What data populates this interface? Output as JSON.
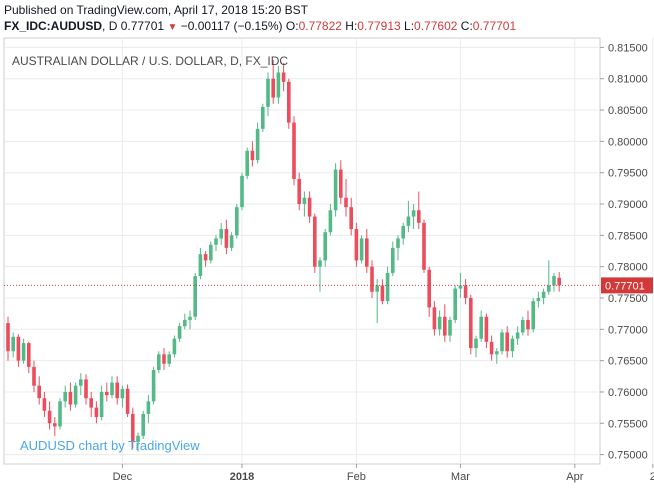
{
  "header": {
    "published": "Published on TradingView.com, April 17, 2018 15:20 BST",
    "symbol": "FX_IDC:AUDUSD",
    "interval": "D",
    "last": "0.77701",
    "change": "−0.00117 (−0.15%)",
    "o_label": "O:",
    "o": "0.77822",
    "h_label": "H:",
    "h": "0.77913",
    "l_label": "L:",
    "l": "0.77602",
    "c_label": "C:",
    "c": "0.77701",
    "down_icon": "down-triangle-icon"
  },
  "chart_data": {
    "type": "candlestick",
    "title": "AUSTRALIAN DOLLAR / U.S. DOLLAR, D, FX_IDC",
    "watermark": "AUDUSD chart by TradingView",
    "ylim": [
      0.7485,
      0.8165
    ],
    "y_ticks": [
      "0.81500",
      "0.81000",
      "0.80500",
      "0.80000",
      "0.79500",
      "0.79000",
      "0.78500",
      "0.78000",
      "0.77500",
      "0.77000",
      "0.76500",
      "0.76000",
      "0.75500",
      "0.75000"
    ],
    "x_ticks": [
      {
        "label": "Dec",
        "index": 22
      },
      {
        "label": "2018",
        "index": 45,
        "bold": true
      },
      {
        "label": "Feb",
        "index": 67
      },
      {
        "label": "Mar",
        "index": 87
      },
      {
        "label": "Apr",
        "index": 109
      },
      {
        "label": "2",
        "index": 124
      }
    ],
    "last_price": 0.77701,
    "last_price_label": "0.77701",
    "colors": {
      "up": "#53b987",
      "down": "#eb4d5c",
      "last": "#d23a3a",
      "grid": "#e9ebee",
      "axis": "#131722"
    },
    "candles": [
      [
        0.771,
        0.772,
        0.765,
        0.7665
      ],
      [
        0.7665,
        0.7695,
        0.7655,
        0.7688
      ],
      [
        0.7688,
        0.7692,
        0.764,
        0.765
      ],
      [
        0.765,
        0.7685,
        0.7645,
        0.7678
      ],
      [
        0.7678,
        0.768,
        0.763,
        0.764
      ],
      [
        0.764,
        0.765,
        0.76,
        0.761
      ],
      [
        0.761,
        0.7625,
        0.758,
        0.759
      ],
      [
        0.759,
        0.76,
        0.756,
        0.757
      ],
      [
        0.757,
        0.7585,
        0.754,
        0.755
      ],
      [
        0.755,
        0.756,
        0.753,
        0.7545
      ],
      [
        0.7545,
        0.759,
        0.754,
        0.7585
      ],
      [
        0.7585,
        0.761,
        0.7575,
        0.76
      ],
      [
        0.76,
        0.7615,
        0.757,
        0.758
      ],
      [
        0.758,
        0.7615,
        0.7575,
        0.761
      ],
      [
        0.761,
        0.763,
        0.7595,
        0.762
      ],
      [
        0.762,
        0.7628,
        0.758,
        0.759
      ],
      [
        0.759,
        0.76,
        0.756,
        0.7575
      ],
      [
        0.7575,
        0.7585,
        0.755,
        0.756
      ],
      [
        0.756,
        0.761,
        0.7555,
        0.76
      ],
      [
        0.76,
        0.7615,
        0.7585,
        0.7595
      ],
      [
        0.7595,
        0.7625,
        0.759,
        0.7615
      ],
      [
        0.7615,
        0.7625,
        0.758,
        0.759
      ],
      [
        0.759,
        0.761,
        0.7575,
        0.7605
      ],
      [
        0.7605,
        0.7612,
        0.756,
        0.7565
      ],
      [
        0.7565,
        0.7575,
        0.751,
        0.752
      ],
      [
        0.752,
        0.7535,
        0.7505,
        0.753
      ],
      [
        0.753,
        0.757,
        0.7525,
        0.7565
      ],
      [
        0.7565,
        0.7595,
        0.755,
        0.7585
      ],
      [
        0.7585,
        0.764,
        0.758,
        0.7635
      ],
      [
        0.7635,
        0.7665,
        0.763,
        0.766
      ],
      [
        0.766,
        0.767,
        0.7635,
        0.7645
      ],
      [
        0.7645,
        0.7665,
        0.764,
        0.766
      ],
      [
        0.766,
        0.769,
        0.7655,
        0.7685
      ],
      [
        0.7685,
        0.771,
        0.768,
        0.7705
      ],
      [
        0.7705,
        0.7725,
        0.77,
        0.7715
      ],
      [
        0.7715,
        0.773,
        0.77,
        0.772
      ],
      [
        0.772,
        0.779,
        0.7715,
        0.7785
      ],
      [
        0.7785,
        0.783,
        0.778,
        0.782
      ],
      [
        0.782,
        0.7825,
        0.78,
        0.781
      ],
      [
        0.781,
        0.784,
        0.7805,
        0.7835
      ],
      [
        0.7835,
        0.785,
        0.7825,
        0.7845
      ],
      [
        0.7845,
        0.787,
        0.7835,
        0.786
      ],
      [
        0.786,
        0.7875,
        0.782,
        0.783
      ],
      [
        0.783,
        0.7855,
        0.7825,
        0.785
      ],
      [
        0.785,
        0.79,
        0.7845,
        0.7895
      ],
      [
        0.7895,
        0.795,
        0.789,
        0.7945
      ],
      [
        0.7945,
        0.799,
        0.794,
        0.7985
      ],
      [
        0.7985,
        0.8,
        0.796,
        0.797
      ],
      [
        0.797,
        0.803,
        0.7965,
        0.802
      ],
      [
        0.802,
        0.806,
        0.8015,
        0.8055
      ],
      [
        0.8055,
        0.811,
        0.804,
        0.81
      ],
      [
        0.81,
        0.813,
        0.806,
        0.807
      ],
      [
        0.807,
        0.812,
        0.806,
        0.811
      ],
      [
        0.811,
        0.8125,
        0.808,
        0.8095
      ],
      [
        0.8095,
        0.81,
        0.802,
        0.803
      ],
      [
        0.803,
        0.804,
        0.793,
        0.794
      ],
      [
        0.794,
        0.795,
        0.789,
        0.79
      ],
      [
        0.79,
        0.792,
        0.788,
        0.791
      ],
      [
        0.791,
        0.792,
        0.787,
        0.788
      ],
      [
        0.788,
        0.7885,
        0.779,
        0.78
      ],
      [
        0.78,
        0.7815,
        0.776,
        0.781
      ],
      [
        0.781,
        0.786,
        0.78,
        0.7855
      ],
      [
        0.7855,
        0.79,
        0.785,
        0.789
      ],
      [
        0.789,
        0.7965,
        0.788,
        0.7955
      ],
      [
        0.7955,
        0.797,
        0.79,
        0.791
      ],
      [
        0.791,
        0.794,
        0.788,
        0.7895
      ],
      [
        0.7895,
        0.791,
        0.785,
        0.786
      ],
      [
        0.786,
        0.787,
        0.78,
        0.781
      ],
      [
        0.781,
        0.785,
        0.7805,
        0.7845
      ],
      [
        0.7845,
        0.786,
        0.779,
        0.78
      ],
      [
        0.78,
        0.781,
        0.775,
        0.776
      ],
      [
        0.776,
        0.778,
        0.771,
        0.777
      ],
      [
        0.777,
        0.778,
        0.774,
        0.7745
      ],
      [
        0.7745,
        0.78,
        0.774,
        0.779
      ],
      [
        0.779,
        0.784,
        0.7785,
        0.783
      ],
      [
        0.783,
        0.785,
        0.781,
        0.7845
      ],
      [
        0.7845,
        0.787,
        0.7835,
        0.7865
      ],
      [
        0.7865,
        0.7905,
        0.7855,
        0.788
      ],
      [
        0.788,
        0.79,
        0.786,
        0.789
      ],
      [
        0.789,
        0.792,
        0.786,
        0.787
      ],
      [
        0.787,
        0.7875,
        0.779,
        0.7795
      ],
      [
        0.7795,
        0.78,
        0.772,
        0.7735
      ],
      [
        0.7735,
        0.7745,
        0.769,
        0.77
      ],
      [
        0.77,
        0.773,
        0.769,
        0.772
      ],
      [
        0.772,
        0.774,
        0.768,
        0.769
      ],
      [
        0.769,
        0.772,
        0.768,
        0.7715
      ],
      [
        0.7715,
        0.777,
        0.771,
        0.7765
      ],
      [
        0.7765,
        0.779,
        0.775,
        0.777
      ],
      [
        0.777,
        0.778,
        0.774,
        0.775
      ],
      [
        0.775,
        0.7755,
        0.766,
        0.767
      ],
      [
        0.767,
        0.769,
        0.7655,
        0.7685
      ],
      [
        0.7685,
        0.773,
        0.768,
        0.772
      ],
      [
        0.772,
        0.7725,
        0.767,
        0.768
      ],
      [
        0.768,
        0.769,
        0.765,
        0.766
      ],
      [
        0.766,
        0.767,
        0.7645,
        0.7665
      ],
      [
        0.7665,
        0.77,
        0.766,
        0.7695
      ],
      [
        0.7695,
        0.7705,
        0.7655,
        0.7665
      ],
      [
        0.7665,
        0.769,
        0.7655,
        0.7685
      ],
      [
        0.7685,
        0.7705,
        0.7675,
        0.7695
      ],
      [
        0.7695,
        0.772,
        0.769,
        0.7715
      ],
      [
        0.7715,
        0.773,
        0.769,
        0.77
      ],
      [
        0.77,
        0.775,
        0.7695,
        0.7745
      ],
      [
        0.7745,
        0.776,
        0.7735,
        0.775
      ],
      [
        0.775,
        0.7765,
        0.774,
        0.776
      ],
      [
        0.776,
        0.781,
        0.7755,
        0.777
      ],
      [
        0.777,
        0.779,
        0.776,
        0.7785
      ],
      [
        0.77822,
        0.77913,
        0.77602,
        0.77701
      ]
    ]
  }
}
